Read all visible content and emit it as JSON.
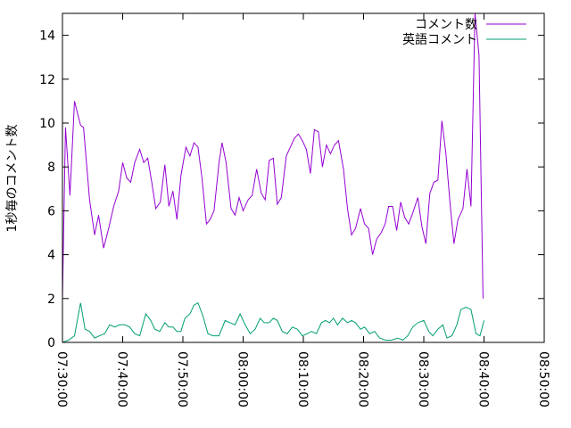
{
  "chart_data": {
    "type": "line",
    "title": "",
    "xlabel": "",
    "ylabel": "1秒毎のコメント数",
    "xlim": [
      0,
      4800
    ],
    "ylim": [
      0,
      15
    ],
    "x_ticks": [
      {
        "value": 0,
        "label": "07:30:00"
      },
      {
        "value": 600,
        "label": "07:40:00"
      },
      {
        "value": 1200,
        "label": "07:50:00"
      },
      {
        "value": 1800,
        "label": "08:00:00"
      },
      {
        "value": 2400,
        "label": "08:10:00"
      },
      {
        "value": 3000,
        "label": "08:20:00"
      },
      {
        "value": 3600,
        "label": "08:30:00"
      },
      {
        "value": 4200,
        "label": "08:40:00"
      },
      {
        "value": 4800,
        "label": "08:50:00"
      }
    ],
    "y_ticks": [
      0,
      2,
      4,
      6,
      8,
      10,
      12,
      14
    ],
    "legend_position": "top-right",
    "grid": false,
    "series": [
      {
        "name": "コメント数",
        "color": "#9400d3",
        "points": [
          [
            0,
            2.0
          ],
          [
            30,
            9.8
          ],
          [
            75,
            6.7
          ],
          [
            120,
            11.0
          ],
          [
            180,
            9.9
          ],
          [
            210,
            9.8
          ],
          [
            270,
            6.5
          ],
          [
            320,
            4.9
          ],
          [
            360,
            5.8
          ],
          [
            410,
            4.3
          ],
          [
            460,
            5.2
          ],
          [
            510,
            6.2
          ],
          [
            560,
            6.9
          ],
          [
            600,
            8.2
          ],
          [
            640,
            7.5
          ],
          [
            680,
            7.3
          ],
          [
            720,
            8.2
          ],
          [
            770,
            8.8
          ],
          [
            810,
            8.2
          ],
          [
            850,
            8.4
          ],
          [
            890,
            7.3
          ],
          [
            930,
            6.1
          ],
          [
            975,
            6.4
          ],
          [
            1020,
            8.1
          ],
          [
            1060,
            6.2
          ],
          [
            1100,
            6.9
          ],
          [
            1140,
            5.6
          ],
          [
            1180,
            7.6
          ],
          [
            1230,
            8.9
          ],
          [
            1270,
            8.5
          ],
          [
            1310,
            9.1
          ],
          [
            1350,
            8.9
          ],
          [
            1390,
            7.5
          ],
          [
            1435,
            5.4
          ],
          [
            1470,
            5.6
          ],
          [
            1510,
            6.0
          ],
          [
            1560,
            8.2
          ],
          [
            1590,
            9.1
          ],
          [
            1630,
            8.2
          ],
          [
            1680,
            6.1
          ],
          [
            1720,
            5.8
          ],
          [
            1760,
            6.6
          ],
          [
            1800,
            6.0
          ],
          [
            1850,
            6.5
          ],
          [
            1890,
            6.7
          ],
          [
            1935,
            7.9
          ],
          [
            1980,
            6.8
          ],
          [
            2020,
            6.5
          ],
          [
            2060,
            8.3
          ],
          [
            2100,
            8.4
          ],
          [
            2140,
            6.3
          ],
          [
            2180,
            6.6
          ],
          [
            2230,
            8.5
          ],
          [
            2270,
            8.9
          ],
          [
            2310,
            9.3
          ],
          [
            2350,
            9.5
          ],
          [
            2390,
            9.2
          ],
          [
            2430,
            8.8
          ],
          [
            2470,
            7.7
          ],
          [
            2510,
            9.7
          ],
          [
            2550,
            9.6
          ],
          [
            2590,
            8.0
          ],
          [
            2630,
            9.0
          ],
          [
            2670,
            8.6
          ],
          [
            2710,
            9.0
          ],
          [
            2750,
            9.2
          ],
          [
            2800,
            7.9
          ],
          [
            2840,
            6.1
          ],
          [
            2880,
            4.9
          ],
          [
            2920,
            5.2
          ],
          [
            2970,
            6.1
          ],
          [
            3010,
            5.4
          ],
          [
            3050,
            5.2
          ],
          [
            3090,
            4.0
          ],
          [
            3130,
            4.7
          ],
          [
            3175,
            5.0
          ],
          [
            3215,
            5.4
          ],
          [
            3250,
            6.2
          ],
          [
            3290,
            6.2
          ],
          [
            3330,
            5.1
          ],
          [
            3370,
            6.4
          ],
          [
            3410,
            5.7
          ],
          [
            3450,
            5.4
          ],
          [
            3490,
            5.9
          ],
          [
            3540,
            6.6
          ],
          [
            3580,
            5.3
          ],
          [
            3620,
            4.5
          ],
          [
            3660,
            6.8
          ],
          [
            3700,
            7.3
          ],
          [
            3740,
            7.4
          ],
          [
            3780,
            10.1
          ],
          [
            3820,
            8.6
          ],
          [
            3860,
            6.4
          ],
          [
            3900,
            4.5
          ],
          [
            3940,
            5.6
          ],
          [
            3990,
            6.1
          ],
          [
            4030,
            7.9
          ],
          [
            4070,
            6.2
          ],
          [
            4110,
            15.0
          ],
          [
            4150,
            13.1
          ],
          [
            4190,
            2.0
          ]
        ]
      },
      {
        "name": "英語コメント",
        "color": "#009e73",
        "points": [
          [
            0,
            0.0
          ],
          [
            60,
            0.1
          ],
          [
            120,
            0.3
          ],
          [
            180,
            1.8
          ],
          [
            225,
            0.6
          ],
          [
            270,
            0.5
          ],
          [
            320,
            0.2
          ],
          [
            370,
            0.3
          ],
          [
            420,
            0.4
          ],
          [
            470,
            0.8
          ],
          [
            520,
            0.7
          ],
          [
            570,
            0.8
          ],
          [
            620,
            0.8
          ],
          [
            670,
            0.7
          ],
          [
            720,
            0.4
          ],
          [
            770,
            0.3
          ],
          [
            830,
            1.3
          ],
          [
            880,
            1.0
          ],
          [
            920,
            0.6
          ],
          [
            970,
            0.5
          ],
          [
            1020,
            0.9
          ],
          [
            1060,
            0.7
          ],
          [
            1100,
            0.7
          ],
          [
            1140,
            0.5
          ],
          [
            1180,
            0.5
          ],
          [
            1220,
            1.1
          ],
          [
            1270,
            1.3
          ],
          [
            1310,
            1.7
          ],
          [
            1350,
            1.8
          ],
          [
            1400,
            1.2
          ],
          [
            1450,
            0.4
          ],
          [
            1500,
            0.3
          ],
          [
            1560,
            0.3
          ],
          [
            1620,
            1.0
          ],
          [
            1670,
            0.9
          ],
          [
            1720,
            0.8
          ],
          [
            1770,
            1.3
          ],
          [
            1820,
            0.8
          ],
          [
            1870,
            0.4
          ],
          [
            1920,
            0.6
          ],
          [
            1970,
            1.1
          ],
          [
            2010,
            0.9
          ],
          [
            2060,
            0.9
          ],
          [
            2100,
            1.1
          ],
          [
            2140,
            1.0
          ],
          [
            2190,
            0.5
          ],
          [
            2240,
            0.4
          ],
          [
            2290,
            0.7
          ],
          [
            2340,
            0.6
          ],
          [
            2390,
            0.3
          ],
          [
            2440,
            0.4
          ],
          [
            2480,
            0.5
          ],
          [
            2530,
            0.4
          ],
          [
            2580,
            0.9
          ],
          [
            2620,
            1.0
          ],
          [
            2660,
            0.9
          ],
          [
            2700,
            1.1
          ],
          [
            2740,
            0.8
          ],
          [
            2790,
            1.1
          ],
          [
            2840,
            0.9
          ],
          [
            2880,
            1.0
          ],
          [
            2920,
            0.9
          ],
          [
            2970,
            0.6
          ],
          [
            3010,
            0.7
          ],
          [
            3060,
            0.4
          ],
          [
            3110,
            0.5
          ],
          [
            3160,
            0.2
          ],
          [
            3220,
            0.1
          ],
          [
            3280,
            0.1
          ],
          [
            3340,
            0.2
          ],
          [
            3390,
            0.1
          ],
          [
            3440,
            0.3
          ],
          [
            3490,
            0.7
          ],
          [
            3540,
            0.9
          ],
          [
            3600,
            1.0
          ],
          [
            3650,
            0.5
          ],
          [
            3690,
            0.3
          ],
          [
            3740,
            0.6
          ],
          [
            3790,
            0.8
          ],
          [
            3830,
            0.2
          ],
          [
            3880,
            0.3
          ],
          [
            3930,
            0.8
          ],
          [
            3970,
            1.5
          ],
          [
            4020,
            1.6
          ],
          [
            4070,
            1.5
          ],
          [
            4120,
            0.4
          ],
          [
            4160,
            0.3
          ],
          [
            4200,
            1.0
          ]
        ]
      }
    ]
  }
}
